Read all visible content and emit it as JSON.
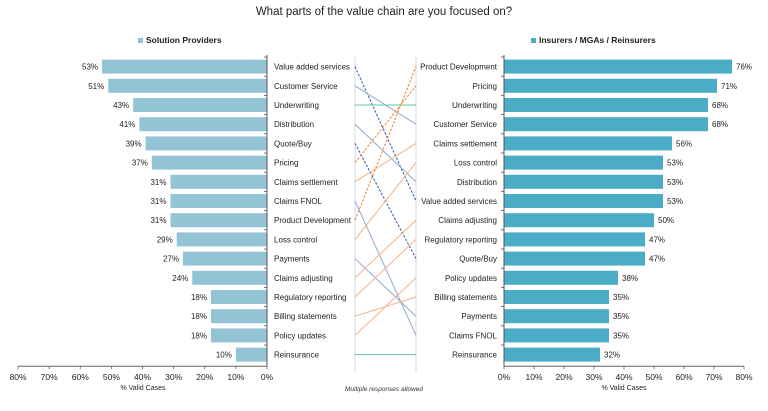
{
  "chart_data": [
    {
      "type": "bar",
      "orientation": "horizontal",
      "direction": "right-to-left",
      "title": "What parts of the value chain are you focused on?",
      "series": [
        {
          "name": "Solution Providers",
          "color": "#92C4D6"
        }
      ],
      "categories": [
        "Value added services",
        "Customer Service",
        "Underwriting",
        "Distribution",
        "Quote/Buy",
        "Pricing",
        "Claims settlement",
        "Claims FNOL",
        "Product Development",
        "Loss control",
        "Payments",
        "Claims adjusting",
        "Regulatory reporting",
        "Billing statements",
        "Policy updates",
        "Reinsurance"
      ],
      "values": [
        53,
        51,
        43,
        41,
        39,
        37,
        31,
        31,
        31,
        29,
        27,
        24,
        18,
        18,
        18,
        10
      ],
      "value_labels": [
        "53%",
        "51%",
        "43%",
        "41%",
        "39%",
        "37%",
        "31%",
        "31%",
        "31%",
        "29%",
        "27%",
        "24%",
        "18%",
        "18%",
        "18%",
        "10%"
      ],
      "xlabel": "% Valid Cases",
      "xlim": [
        0,
        80
      ],
      "xticks": [
        "80%",
        "70%",
        "60%",
        "50%",
        "40%",
        "30%",
        "20%",
        "10%",
        "0%"
      ],
      "grid": false,
      "legend": "top"
    },
    {
      "type": "bar",
      "orientation": "horizontal",
      "direction": "left-to-right",
      "series": [
        {
          "name": "Insurers / MGAs / Reinsurers",
          "color": "#4BACC6"
        }
      ],
      "categories": [
        "Product Development",
        "Pricing",
        "Underwriting",
        "Customer Service",
        "Claims settlement",
        "Loss control",
        "Distribution",
        "Value added services",
        "Claims adjusting",
        "Regulatory reporting",
        "Quote/Buy",
        "Policy updates",
        "Billing statements",
        "Payments",
        "Claims FNOL",
        "Reinsurance"
      ],
      "values": [
        76,
        71,
        68,
        68,
        56,
        53,
        53,
        53,
        50,
        47,
        47,
        38,
        35,
        35,
        35,
        32
      ],
      "value_labels": [
        "76%",
        "71%",
        "68%",
        "68%",
        "56%",
        "53%",
        "53%",
        "53%",
        "50%",
        "47%",
        "47%",
        "38%",
        "35%",
        "35%",
        "35%",
        "32%"
      ],
      "xlabel": "% Valid Cases",
      "xlim": [
        0,
        80
      ],
      "xticks": [
        "0%",
        "10%",
        "20%",
        "30%",
        "40%",
        "50%",
        "60%",
        "70%",
        "80%"
      ],
      "grid": false,
      "legend": "top"
    },
    {
      "type": "line",
      "subtype": "slope-rank-connectors",
      "description": "Connects each category's rank in the left chart to its rank in the right chart",
      "colors": {
        "rank_up": "#F4B183",
        "rank_down": "#8FA9CF",
        "rank_same": "#5BC8A0",
        "strong_up": "#F08A3C",
        "strong_down": "#3D63B8"
      },
      "emphasized_dashed": [
        "Value added services",
        "Quote/Buy",
        "Pricing",
        "Product Development"
      ]
    }
  ],
  "page": {
    "title": "What parts of the value chain are you focused on?",
    "footnote": "Multiple responses allowed",
    "legend_left": "Solution Providers",
    "legend_right": "Insurers / MGAs / Reinsurers"
  }
}
